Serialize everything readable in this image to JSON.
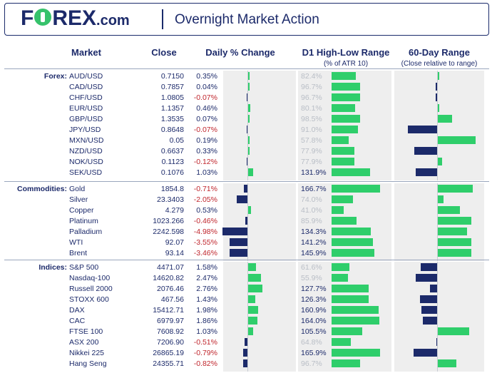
{
  "header": {
    "logo_main": "F",
    "logo_rest": "REX",
    "logo_suffix": ".com",
    "title": "Overnight Market Action"
  },
  "columns": {
    "market": "Market",
    "close": "Close",
    "change": "Daily % Change",
    "range": "D1 High-Low Range",
    "range_sub": "(% of ATR 10)",
    "sixty": "60-Day Range",
    "sixty_sub": "(Close relative to range)"
  },
  "colors": {
    "positive": "#2fce6b",
    "negative_bar": "#1c2a6a",
    "negative_text": "#c0262d",
    "panel": "#eeeeee",
    "brand": "#1c2a6a"
  },
  "chart_data": {
    "type": "table",
    "groups": [
      {
        "name": "Forex:",
        "rows": [
          {
            "market": "AUD/USD",
            "close": "0.7150",
            "change": 0.35,
            "change_label": "0.35%",
            "range": 82.4,
            "range_label": "82.4%",
            "sixty": 0.03
          },
          {
            "market": "CAD/USD",
            "close": "0.7857",
            "change": 0.04,
            "change_label": "0.04%",
            "range": 96.7,
            "range_label": "96.7%",
            "sixty": -0.04
          },
          {
            "market": "CHF/USD",
            "close": "1.0805",
            "change": -0.07,
            "change_label": "-0.07%",
            "range": 96.7,
            "range_label": "96.7%",
            "sixty": -0.04
          },
          {
            "market": "EUR/USD",
            "close": "1.1357",
            "change": 0.46,
            "change_label": "0.46%",
            "range": 80.1,
            "range_label": "80.1%",
            "sixty": 0.04
          },
          {
            "market": "GBP/USD",
            "close": "1.3535",
            "change": 0.07,
            "change_label": "0.07%",
            "range": 98.5,
            "range_label": "98.5%",
            "sixty": 0.33
          },
          {
            "market": "JPY/USD",
            "close": "0.8648",
            "change": -0.07,
            "change_label": "-0.07%",
            "range": 91.0,
            "range_label": "91.0%",
            "sixty": -0.69
          },
          {
            "market": "MXN/USD",
            "close": "0.05",
            "change": 0.19,
            "change_label": "0.19%",
            "range": 57.8,
            "range_label": "57.8%",
            "sixty": 0.88
          },
          {
            "market": "NZD/USD",
            "close": "0.6637",
            "change": 0.33,
            "change_label": "0.33%",
            "range": 77.9,
            "range_label": "77.9%",
            "sixty": -0.54
          },
          {
            "market": "NOK/USD",
            "close": "0.1123",
            "change": -0.12,
            "change_label": "-0.12%",
            "range": 77.9,
            "range_label": "77.9%",
            "sixty": 0.1
          },
          {
            "market": "SEK/USD",
            "close": "0.1076",
            "change": 1.03,
            "change_label": "1.03%",
            "range": 131.9,
            "range_label": "131.9%",
            "sixty": -0.5
          }
        ]
      },
      {
        "name": "Commodities:",
        "rows": [
          {
            "market": "Gold",
            "close": "1854.8",
            "change": -0.71,
            "change_label": "-0.71%",
            "range": 166.7,
            "range_label": "166.7%",
            "sixty": 0.81
          },
          {
            "market": "Silver",
            "close": "23.3403",
            "change": -2.05,
            "change_label": "-2.05%",
            "range": 74.0,
            "range_label": "74.0%",
            "sixty": 0.14
          },
          {
            "market": "Copper",
            "close": "4.279",
            "change": 0.53,
            "change_label": "0.53%",
            "range": 41.0,
            "range_label": "41.0%",
            "sixty": 0.52
          },
          {
            "market": "Platinum",
            "close": "1023.266",
            "change": -0.46,
            "change_label": "-0.46%",
            "range": 85.9,
            "range_label": "85.9%",
            "sixty": 0.79
          },
          {
            "market": "Palladium",
            "close": "2242.598",
            "change": -4.98,
            "change_label": "-4.98%",
            "range": 134.3,
            "range_label": "134.3%",
            "sixty": 0.69
          },
          {
            "market": "WTI",
            "close": "92.07",
            "change": -3.55,
            "change_label": "-3.55%",
            "range": 141.2,
            "range_label": "141.2%",
            "sixty": 0.79
          },
          {
            "market": "Brent",
            "close": "93.14",
            "change": -3.46,
            "change_label": "-3.46%",
            "range": 145.9,
            "range_label": "145.9%",
            "sixty": 0.79
          }
        ]
      },
      {
        "name": "Indices:",
        "rows": [
          {
            "market": "S&P 500",
            "close": "4471.07",
            "change": 1.58,
            "change_label": "1.58%",
            "range": 61.6,
            "range_label": "61.6%",
            "sixty": -0.38
          },
          {
            "market": "Nasdaq-100",
            "close": "14620.82",
            "change": 2.47,
            "change_label": "2.47%",
            "range": 55.9,
            "range_label": "55.9%",
            "sixty": -0.5
          },
          {
            "market": "Russell 2000",
            "close": "2076.46",
            "change": 2.76,
            "change_label": "2.76%",
            "range": 127.7,
            "range_label": "127.7%",
            "sixty": -0.16
          },
          {
            "market": "STOXX 600",
            "close": "467.56",
            "change": 1.43,
            "change_label": "1.43%",
            "range": 126.3,
            "range_label": "126.3%",
            "sixty": -0.4
          },
          {
            "market": "DAX",
            "close": "15412.71",
            "change": 1.98,
            "change_label": "1.98%",
            "range": 160.9,
            "range_label": "160.9%",
            "sixty": -0.36
          },
          {
            "market": "CAC",
            "close": "6979.97",
            "change": 1.86,
            "change_label": "1.86%",
            "range": 164.0,
            "range_label": "164.0%",
            "sixty": -0.34
          },
          {
            "market": "FTSE 100",
            "close": "7608.92",
            "change": 1.03,
            "change_label": "1.03%",
            "range": 105.5,
            "range_label": "105.5%",
            "sixty": 0.74
          },
          {
            "market": "ASX 200",
            "close": "7206.90",
            "change": -0.51,
            "change_label": "-0.51%",
            "range": 64.8,
            "range_label": "64.8%",
            "sixty": -0.02
          },
          {
            "market": "Nikkei 225",
            "close": "26865.19",
            "change": -0.79,
            "change_label": "-0.79%",
            "range": 165.9,
            "range_label": "165.9%",
            "sixty": -0.55
          },
          {
            "market": "Hang Seng",
            "close": "24355.71",
            "change": -0.82,
            "change_label": "-0.82%",
            "range": 96.7,
            "range_label": "96.7%",
            "sixty": 0.43
          }
        ]
      }
    ]
  }
}
